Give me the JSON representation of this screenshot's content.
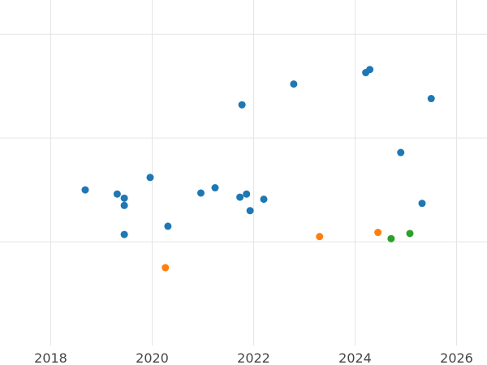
{
  "chart_data": {
    "type": "scatter",
    "title": "",
    "xlabel": "",
    "ylabel": "",
    "x_unit": "year (decimal)",
    "xlim": [
      2017.0,
      2026.6
    ],
    "ylim": [
      0,
      3.33
    ],
    "x_ticks": [
      2018,
      2020,
      2022,
      2024,
      2026
    ],
    "x_tick_labels": [
      "2018",
      "2020",
      "2022",
      "2024",
      "2026"
    ],
    "y_gridlines": [
      1,
      2,
      3
    ],
    "y_tick_labels_visible": false,
    "grid": true,
    "legend": "none",
    "series": [
      {
        "color": "#1f77b4",
        "points": [
          {
            "x": 2018.68,
            "y": 1.5
          },
          {
            "x": 2019.31,
            "y": 1.46
          },
          {
            "x": 2019.45,
            "y": 1.42
          },
          {
            "x": 2019.45,
            "y": 1.35
          },
          {
            "x": 2019.45,
            "y": 1.07
          },
          {
            "x": 2019.96,
            "y": 1.62
          },
          {
            "x": 2020.31,
            "y": 1.15
          },
          {
            "x": 2020.96,
            "y": 1.47
          },
          {
            "x": 2021.24,
            "y": 1.52
          },
          {
            "x": 2021.73,
            "y": 1.43
          },
          {
            "x": 2021.86,
            "y": 1.46
          },
          {
            "x": 2021.93,
            "y": 1.3
          },
          {
            "x": 2022.2,
            "y": 1.41
          },
          {
            "x": 2021.77,
            "y": 2.32
          },
          {
            "x": 2022.79,
            "y": 2.52
          },
          {
            "x": 2024.21,
            "y": 2.63
          },
          {
            "x": 2024.29,
            "y": 2.66
          },
          {
            "x": 2024.9,
            "y": 1.86
          },
          {
            "x": 2025.32,
            "y": 1.37
          },
          {
            "x": 2025.5,
            "y": 2.38
          }
        ]
      },
      {
        "color": "#ff7f0e",
        "points": [
          {
            "x": 2020.26,
            "y": 0.75
          },
          {
            "x": 2023.3,
            "y": 1.05
          },
          {
            "x": 2024.45,
            "y": 1.09
          }
        ]
      },
      {
        "color": "#2ca02c",
        "points": [
          {
            "x": 2024.71,
            "y": 1.03
          },
          {
            "x": 2025.08,
            "y": 1.08
          }
        ]
      }
    ]
  }
}
